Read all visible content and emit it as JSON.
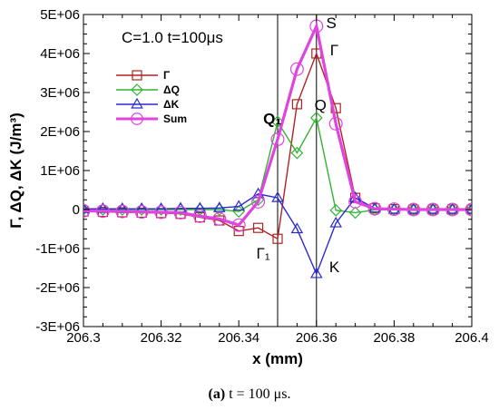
{
  "chart_data": {
    "type": "line",
    "title": "C=1.0 t=100μs",
    "xlabel": "x (mm)",
    "ylabel": "Γ, ΔQ, ΔK (J/m³)",
    "xlim": [
      206.3,
      206.4
    ],
    "ylim": [
      -3000000,
      5000000
    ],
    "x_ticks": [
      206.3,
      206.32,
      206.34,
      206.36,
      206.38,
      206.4
    ],
    "x_tick_labels": [
      "206.3",
      "206.32",
      "206.34",
      "206.36",
      "206.38",
      "206.4"
    ],
    "y_ticks": [
      -3000000,
      -2000000,
      -1000000,
      0,
      1000000,
      2000000,
      3000000,
      4000000,
      5000000
    ],
    "y_tick_labels": [
      "-3E+06",
      "-2E+06",
      "-1E+06",
      "0",
      "1E+06",
      "2E+06",
      "3E+06",
      "4E+06",
      "5E+06"
    ],
    "grid": false,
    "legend_position": "upper-left",
    "vertical_lines": [
      206.35,
      206.36
    ],
    "x": [
      206.3,
      206.305,
      206.31,
      206.315,
      206.32,
      206.325,
      206.33,
      206.335,
      206.34,
      206.345,
      206.35,
      206.355,
      206.36,
      206.365,
      206.37,
      206.375,
      206.38,
      206.385,
      206.39,
      206.395,
      206.4
    ],
    "series": [
      {
        "name": "Γ",
        "color": "#b22222",
        "marker": "square",
        "values": [
          -50000,
          -60000,
          -70000,
          -80000,
          -90000,
          -110000,
          -200000,
          -280000,
          -550000,
          -470000,
          -750000,
          2700000,
          4000000,
          2600000,
          300000,
          30000,
          10000,
          0,
          0,
          0,
          0
        ]
      },
      {
        "name": "ΔQ",
        "color": "#33b233",
        "marker": "diamond",
        "values": [
          0,
          0,
          0,
          0,
          0,
          0,
          0,
          0,
          -50000,
          250000,
          2250000,
          1450000,
          2350000,
          -20000,
          -80000,
          -10000,
          0,
          0,
          0,
          0,
          0
        ]
      },
      {
        "name": "ΔK",
        "color": "#2a2ad4",
        "marker": "triangle",
        "values": [
          20000,
          20000,
          20000,
          20000,
          20000,
          30000,
          30000,
          40000,
          80000,
          400000,
          300000,
          -500000,
          -1650000,
          -350000,
          300000,
          30000,
          0,
          0,
          0,
          0,
          0
        ]
      },
      {
        "name": "Sum",
        "color": "#e044e0",
        "marker": "circle",
        "values": [
          -30000,
          -40000,
          -50000,
          -60000,
          -70000,
          -80000,
          -170000,
          -240000,
          -400000,
          200000,
          1800000,
          3600000,
          4700000,
          2200000,
          200000,
          20000,
          10000,
          0,
          0,
          0,
          0
        ]
      }
    ],
    "annotations": [
      {
        "text": "S",
        "x": 206.3625,
        "y": 4650000,
        "bold": false
      },
      {
        "text": "Γ",
        "x": 206.3635,
        "y": 3950000,
        "bold": false
      },
      {
        "text": "Q",
        "x": 206.3595,
        "y": 2550000,
        "bold": false
      },
      {
        "text": "Q₁",
        "x": 206.3463,
        "y": 2200000,
        "bold": true
      },
      {
        "text": "Γ₁",
        "x": 206.3445,
        "y": -1250000,
        "bold": false
      },
      {
        "text": "K",
        "x": 206.3633,
        "y": -1600000,
        "bold": false
      }
    ]
  },
  "caption": {
    "label": "(a)",
    "text": " t = 100 μs."
  }
}
